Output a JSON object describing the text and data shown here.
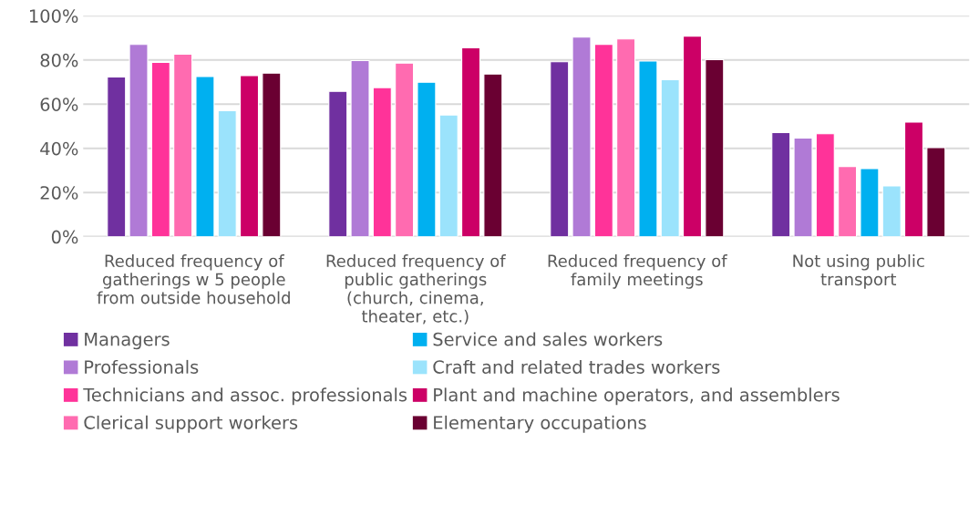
{
  "chart_data": {
    "type": "bar",
    "categories": [
      "Reduced frequency of gatherings w 5 people from outside household",
      "Reduced frequency of public gatherings (church, cinema, theater, etc.)",
      "Reduced frequency of family meetings",
      "Not using public transport"
    ],
    "series": [
      {
        "name": "Managers",
        "color": "#7030a0",
        "values": [
          72.3,
          65.8,
          79.2,
          47.1
        ]
      },
      {
        "name": "Professionals",
        "color": "#b07ad6",
        "values": [
          87.0,
          79.7,
          90.3,
          44.7
        ]
      },
      {
        "name": "Technicians and assoc. professionals",
        "color": "#ff3399",
        "values": [
          78.9,
          67.5,
          87.1,
          46.6
        ]
      },
      {
        "name": "Clerical support workers",
        "color": "#ff6bb0",
        "values": [
          82.6,
          78.6,
          89.5,
          31.8
        ]
      },
      {
        "name": "Service and sales workers",
        "color": "#00b0f0",
        "values": [
          72.5,
          69.9,
          79.5,
          30.8
        ]
      },
      {
        "name": "Craft and related trades workers",
        "color": "#9be3fc",
        "values": [
          57.0,
          55.1,
          71.1,
          23.0
        ]
      },
      {
        "name": "Plant and machine operators, and assemblers",
        "color": "#cc0066",
        "values": [
          72.9,
          85.5,
          90.8,
          51.9
        ]
      },
      {
        "name": "Elementary occupations",
        "color": "#6a0032",
        "values": [
          74.0,
          73.6,
          80.1,
          40.3
        ]
      }
    ],
    "ylim": [
      0,
      100
    ],
    "yticks": [
      {
        "value": 0,
        "label": "0%"
      },
      {
        "value": 20,
        "label": "20%"
      },
      {
        "value": 40,
        "label": "40%"
      },
      {
        "value": 60,
        "label": "60%"
      },
      {
        "value": 80,
        "label": "80%"
      },
      {
        "value": 100,
        "label": "100%"
      }
    ],
    "grid": "y",
    "legend": "bottom"
  }
}
